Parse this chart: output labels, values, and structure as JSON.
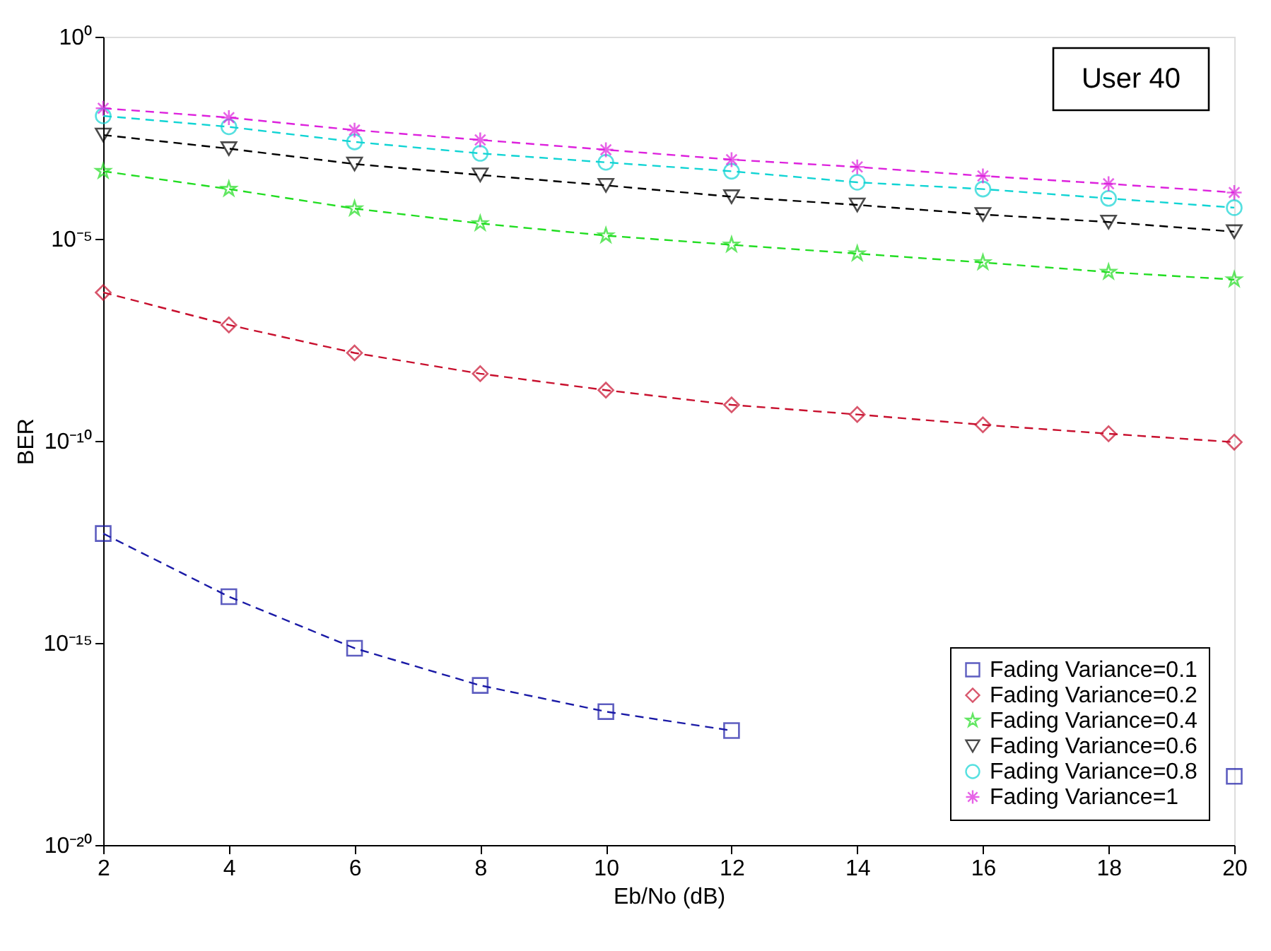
{
  "chart_data": {
    "type": "line",
    "xlabel": "Eb/No (dB)",
    "ylabel": "BER",
    "x": [
      2,
      4,
      6,
      8,
      10,
      12,
      14,
      16,
      18,
      20
    ],
    "series": [
      {
        "name": "Fading Variance=0.1",
        "color": "#1a1aa6",
        "marker": "square",
        "values": [
          5.1e-13,
          1.4e-14,
          7.4e-16,
          8.9e-17,
          2e-17,
          6.8e-18,
          null,
          null,
          null,
          5e-19
        ]
      },
      {
        "name": "Fading Variance=0.2",
        "color": "#c8102e",
        "marker": "diamond",
        "values": [
          4.7e-07,
          7.4e-08,
          1.5e-08,
          4.6e-09,
          1.8e-09,
          7.8e-10,
          4.5e-10,
          2.5e-10,
          1.5e-10,
          9.3e-11
        ]
      },
      {
        "name": "Fading Variance=0.4",
        "color": "#22dd22",
        "marker": "star",
        "values": [
          0.00047,
          0.00017,
          5.6e-05,
          2.4e-05,
          1.2e-05,
          7.1e-06,
          4.3e-06,
          2.6e-06,
          1.5e-06,
          9.8e-07
        ]
      },
      {
        "name": "Fading Variance=0.6",
        "color": "#000000",
        "marker": "triangle",
        "values": [
          0.0037,
          0.0017,
          0.00071,
          0.00038,
          0.00021,
          0.00011,
          6.9e-05,
          4e-05,
          2.6e-05,
          1.5e-05
        ]
      },
      {
        "name": "Fading Variance=0.8",
        "color": "#11d4d4",
        "marker": "circle",
        "values": [
          0.011,
          0.0059,
          0.0025,
          0.0013,
          0.00078,
          0.00047,
          0.00025,
          0.00017,
          0.0001,
          5.9e-05
        ]
      },
      {
        "name": "Fading Variance=1",
        "color": "#dd22dd",
        "marker": "cross",
        "values": [
          0.017,
          0.01,
          0.0049,
          0.0028,
          0.0016,
          0.00091,
          0.0006,
          0.00036,
          0.00023,
          0.00014
        ]
      }
    ],
    "log": true,
    "xlim": [
      2,
      20
    ],
    "xticks": [
      2,
      4,
      6,
      8,
      10,
      12,
      14,
      16,
      18,
      20
    ],
    "ylim": [
      1e-20,
      1
    ],
    "yticks": [
      {
        "value": 1e-20,
        "label": "10⁻²⁰"
      },
      {
        "value": 1e-15,
        "label": "10⁻¹⁵"
      },
      {
        "value": 1e-10,
        "label": "10⁻¹⁰"
      },
      {
        "value": 1e-05,
        "label": "10⁻⁵"
      },
      {
        "value": 1,
        "label": "10⁰"
      }
    ],
    "grid": false,
    "legend": "bottom right",
    "line_style": "dashed",
    "annotations": [
      "User 40"
    ]
  }
}
